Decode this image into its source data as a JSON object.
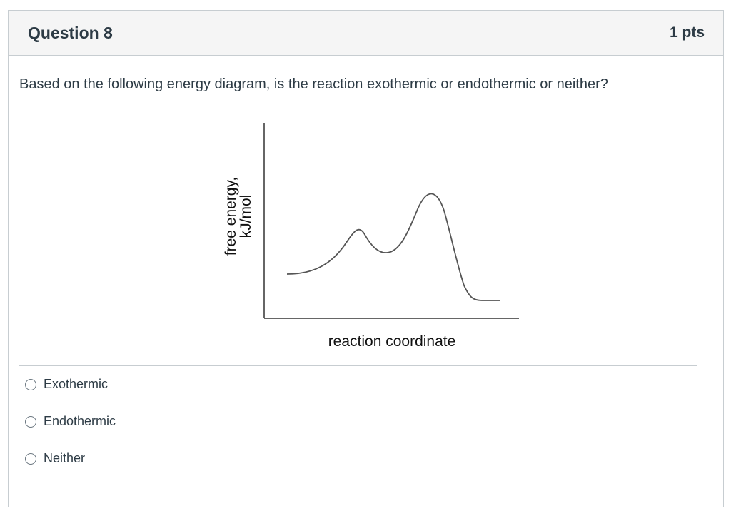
{
  "question": {
    "title": "Question 8",
    "points": "1 pts",
    "text": "Based on the following energy diagram, is the reaction exothermic or endothermic or neither?"
  },
  "diagram": {
    "ylabel_line1": "free energy,",
    "ylabel_line2": "kJ/mol",
    "xlabel": "reaction coordinate"
  },
  "answers": [
    {
      "label": "Exothermic",
      "selected": false
    },
    {
      "label": "Endothermic",
      "selected": false
    },
    {
      "label": "Neither",
      "selected": false
    }
  ]
}
